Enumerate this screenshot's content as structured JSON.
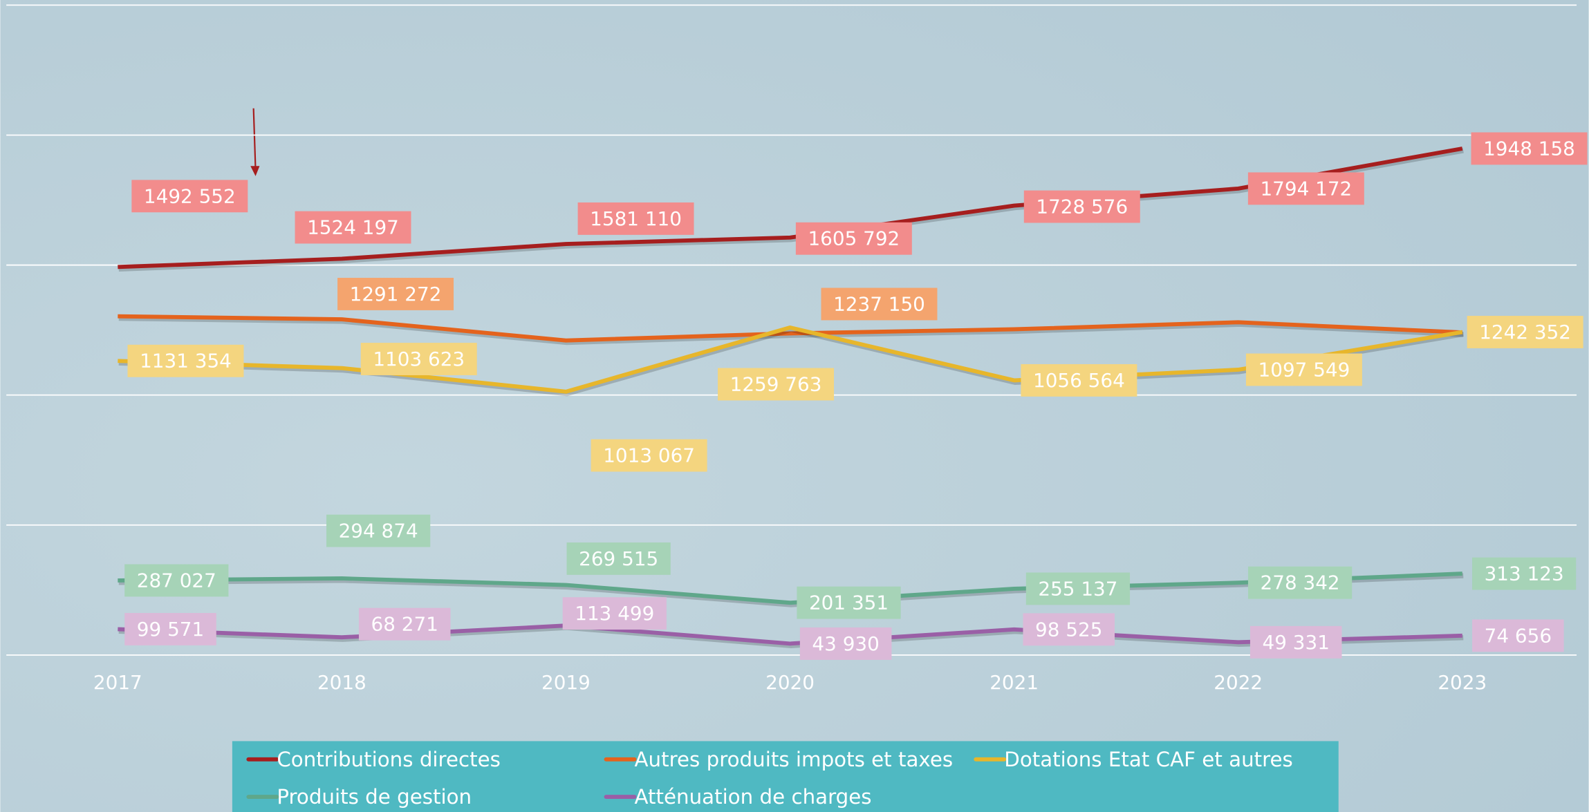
{
  "chart_data": {
    "type": "line",
    "categories": [
      "2017",
      "2018",
      "2019",
      "2020",
      "2021",
      "2022",
      "2023"
    ],
    "ylim": [
      0,
      2500000
    ],
    "yticks": [
      0,
      500000,
      1000000,
      1500000,
      2000000,
      2500000
    ],
    "grid": true,
    "legend": "bottom",
    "series": [
      {
        "name": "Contributions directes",
        "color": "#a61e1e",
        "label_color": "#f28c8c",
        "values": [
          1492552,
          1524197,
          1581110,
          1605792,
          1728576,
          1794172,
          1948158
        ],
        "value_labels": [
          "1492 552",
          "1524 197",
          "1581 110",
          "1605 792",
          "1728 576",
          "1794 172",
          "1948 158"
        ]
      },
      {
        "name": "Autres produits impots et taxes",
        "color": "#e4631d",
        "label_color": "#f4a46e",
        "values": [
          1303000,
          1291272,
          1210000,
          1237150,
          1253000,
          1280000,
          1241000
        ],
        "value_labels": [
          null,
          "1291 272",
          null,
          "1237 150",
          null,
          null,
          null
        ]
      },
      {
        "name": "Dotations Etat CAF et autres",
        "color": "#e7b62b",
        "label_color": "#f4d57f",
        "values": [
          1131354,
          1103623,
          1013067,
          1259763,
          1056564,
          1097549,
          1242352
        ],
        "value_labels": [
          "1131 354",
          "1103 623",
          "1013 067",
          "1259 763",
          "1056 564",
          "1097 549",
          "1242 352"
        ]
      },
      {
        "name": "Produits de gestion",
        "color": "#5fa78a",
        "label_color": "#a6d3b7",
        "values": [
          287027,
          294874,
          269515,
          201351,
          255137,
          278342,
          313123
        ],
        "value_labels": [
          "287 027",
          "294 874",
          "269 515",
          "201 351",
          "255 137",
          "278 342",
          "313 123"
        ]
      },
      {
        "name": "Atténuation de charges",
        "color": "#9a5fa6",
        "label_color": "#dbb9d8",
        "values": [
          99571,
          68271,
          113499,
          43930,
          98525,
          49331,
          74656
        ],
        "value_labels": [
          "99 571",
          "68 271",
          "113 499",
          "43 930",
          "98 525",
          "49 331",
          "74 656"
        ]
      }
    ]
  }
}
